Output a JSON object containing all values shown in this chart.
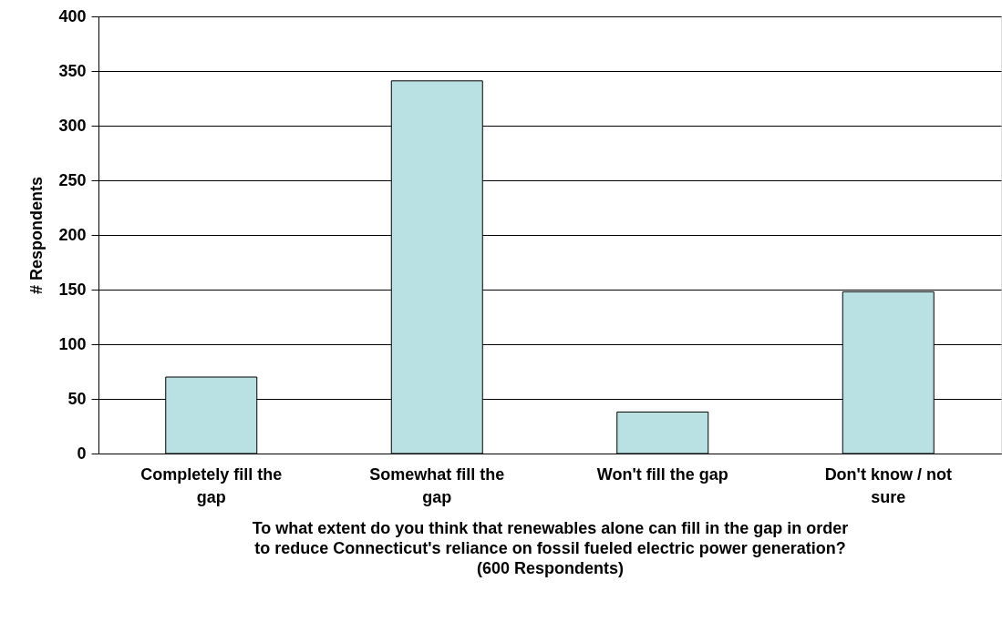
{
  "chart_data": {
    "type": "bar",
    "categories": [
      "Completely fill the gap",
      "Somewhat fill the gap",
      "Won't fill the gap",
      "Don't know / not sure"
    ],
    "values": [
      70,
      341,
      38,
      148
    ],
    "color": "#b9e0e3",
    "ylabel": "# Respondents",
    "xlabel": "To what extent do you think that renewables alone can fill in the gap in order to reduce Connecticut's reliance on fossil fueled electric power generation? (600 Respondents)",
    "ylim": [
      0,
      400
    ],
    "yticks": [
      0,
      50,
      100,
      150,
      200,
      250,
      300,
      350,
      400
    ],
    "grid": "y"
  }
}
